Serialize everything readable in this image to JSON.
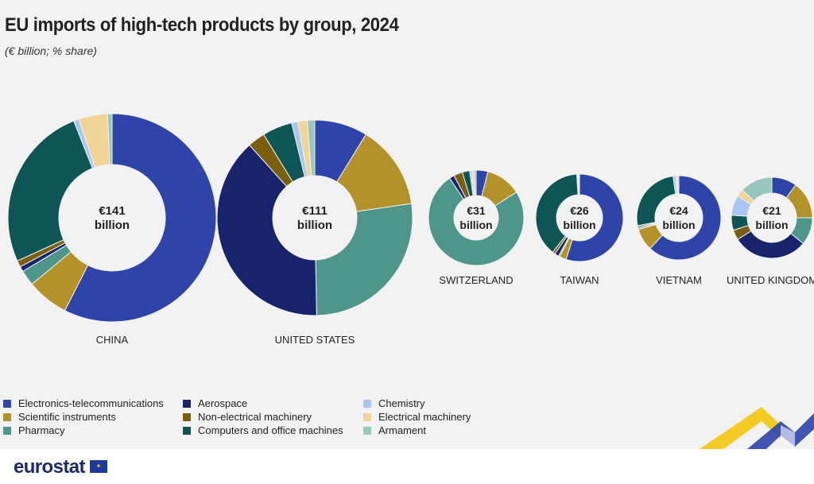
{
  "title": "EU imports of high-tech products by group, 2024",
  "subtitle": "(€ billion; % share)",
  "brand": "eurostat",
  "legend": [
    {
      "name": "Electronics-telecommunications",
      "color": "#2e44a8"
    },
    {
      "name": "Aerospace",
      "color": "#17236b"
    },
    {
      "name": "Chemistry",
      "color": "#a9c6f0"
    },
    {
      "name": "Scientific instruments",
      "color": "#b3922a"
    },
    {
      "name": "Non-electrical machinery",
      "color": "#7a5f0f"
    },
    {
      "name": "Electrical machinery",
      "color": "#f0d596"
    },
    {
      "name": "Pharmacy",
      "color": "#4e958a"
    },
    {
      "name": "Computers and office machines",
      "color": "#0d5655"
    },
    {
      "name": "Armament",
      "color": "#97c7bd"
    }
  ],
  "chart_data": {
    "type": "pie",
    "variant": "donut",
    "groups": [
      "Electronics-telecommunications",
      "Scientific instruments",
      "Pharmacy",
      "Aerospace",
      "Non-electrical machinery",
      "Computers and office machines",
      "Chemistry",
      "Electrical machinery",
      "Armament"
    ],
    "colors": [
      "#2e44a8",
      "#b3922a",
      "#4e958a",
      "#17236b",
      "#7a5f0f",
      "#0d5655",
      "#a9c6f0",
      "#f0d596",
      "#97c7bd"
    ],
    "countries": [
      {
        "name": "CHINA",
        "total": 141,
        "center_value": "€141",
        "center_unit": "billion",
        "shares": [
          57.5,
          6.5,
          2.4,
          0.8,
          1.0,
          25.8,
          0.8,
          4.5,
          0.7
        ]
      },
      {
        "name": "UNITED STATES",
        "total": 111,
        "center_value": "€111",
        "center_unit": "billion",
        "shares": [
          8.5,
          13.5,
          26.2,
          37.5,
          2.8,
          4.8,
          1.0,
          1.5,
          1.2
        ]
      },
      {
        "name": "SWITZERLAND",
        "total": 31,
        "center_value": "€31",
        "center_unit": "billion",
        "shares": [
          4.0,
          12.0,
          74.6,
          1.7,
          3.0,
          2.5,
          0.7,
          0.8,
          0.7
        ]
      },
      {
        "name": "TAIWAN",
        "total": 26,
        "center_value": "€26",
        "center_unit": "billion",
        "shares": [
          55.0,
          2.5,
          0.5,
          1.5,
          1.0,
          38.5,
          0.3,
          0.5,
          0.2
        ]
      },
      {
        "name": "VIETNAM",
        "total": 24,
        "center_value": "€24",
        "center_unit": "billion",
        "shares": [
          62.0,
          8.5,
          0.5,
          0.5,
          0.5,
          25.8,
          1.0,
          0.7,
          0.5
        ]
      },
      {
        "name": "UNITED KINGDOM",
        "total": 21,
        "center_value": "€21",
        "center_unit": "billion",
        "shares": [
          10.0,
          15.0,
          11.0,
          30.0,
          4.0,
          6.0,
          8.0,
          3.0,
          13.0
        ]
      }
    ]
  }
}
